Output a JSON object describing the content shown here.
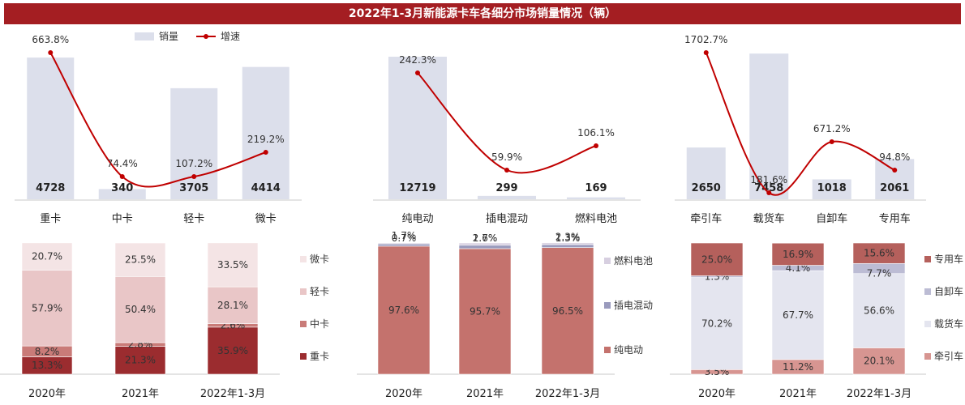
{
  "title": "2022年1-3月新能源卡车各细分市场销量情况（辆）",
  "legend": {
    "bar": "销量",
    "line": "增速"
  },
  "colors": {
    "title_bg": "#a41e22",
    "bar": "#dcdfeb",
    "line": "#c00000"
  },
  "chart_data": [
    {
      "type": "bar",
      "series": [
        {
          "name": "销量",
          "values": [
            4728,
            340,
            3705,
            4414
          ]
        },
        {
          "name": "增速",
          "type": "line",
          "values": [
            "663.8%",
            "74.4%",
            "107.2%",
            "219.2%"
          ]
        }
      ],
      "categories": [
        "重卡",
        "中卡",
        "轻卡",
        "微卡"
      ]
    },
    {
      "type": "bar",
      "series": [
        {
          "name": "销量",
          "values": [
            12719,
            299,
            169
          ]
        },
        {
          "name": "增速",
          "type": "line",
          "values": [
            "242.3%",
            "59.9%",
            "106.1%"
          ]
        }
      ],
      "categories": [
        "纯电动",
        "插电混动",
        "燃料电池"
      ]
    },
    {
      "type": "bar",
      "series": [
        {
          "name": "销量",
          "values": [
            2650,
            7458,
            1018,
            2061
          ]
        },
        {
          "name": "增速",
          "type": "line",
          "values": [
            "1702.7%",
            "181.6%",
            "671.2%",
            "94.8%"
          ]
        }
      ],
      "categories": [
        "牵引车",
        "载货车",
        "自卸车",
        "专用车"
      ]
    },
    {
      "type": "bar",
      "stacked": true,
      "categories": [
        "2020年",
        "2021年",
        "2022年1-3月"
      ],
      "series": [
        {
          "name": "重卡",
          "color": "#9b2c2f",
          "values": [
            "13.3%",
            "21.3%",
            "35.9%"
          ]
        },
        {
          "name": "中卡",
          "color": "#c97b78",
          "values": [
            "8.2%",
            "2.8%",
            "2.6%"
          ]
        },
        {
          "name": "轻卡",
          "color": "#e9c6c7",
          "values": [
            "57.9%",
            "50.4%",
            "28.1%"
          ]
        },
        {
          "name": "微卡",
          "color": "#f4e4e5",
          "values": [
            "20.7%",
            "25.5%",
            "33.5%"
          ]
        }
      ]
    },
    {
      "type": "bar",
      "stacked": true,
      "categories": [
        "2020年",
        "2021年",
        "2022年1-3月"
      ],
      "series": [
        {
          "name": "纯电动",
          "color": "#c4726d",
          "values": [
            "97.6%",
            "95.7%",
            "96.5%"
          ]
        },
        {
          "name": "插电混动",
          "color": "#9a9bbd",
          "values": [
            "1.7%",
            "2.6%",
            "2.3%"
          ]
        },
        {
          "name": "燃料电池",
          "color": "#d7cfe0",
          "values": [
            "0.7%",
            "1.7%",
            "1.3%"
          ]
        }
      ]
    },
    {
      "type": "bar",
      "stacked": true,
      "categories": [
        "2020年",
        "2021年",
        "2022年1-3月"
      ],
      "series": [
        {
          "name": "牵引车",
          "color": "#d79591",
          "values": [
            "3.5%",
            "11.2%",
            "20.1%"
          ]
        },
        {
          "name": "载货车",
          "color": "#e4e5ef",
          "values": [
            "70.2%",
            "67.7%",
            "56.6%"
          ]
        },
        {
          "name": "自卸车",
          "color": "#bcbcd4",
          "values": [
            "1.3%",
            "4.1%",
            "7.7%"
          ]
        },
        {
          "name": "专用车",
          "color": "#b5605c",
          "values": [
            "25.0%",
            "16.9%",
            "15.6%"
          ]
        }
      ]
    }
  ]
}
